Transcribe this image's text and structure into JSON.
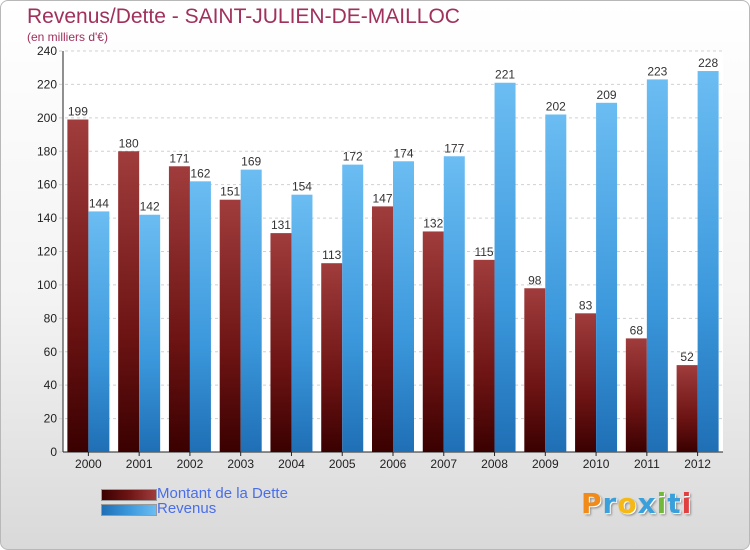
{
  "title": "Revenus/Dette - SAINT-JULIEN-DE-MAILLOC",
  "subtitle": "(en milliers d'€)",
  "brand": {
    "text": "Proxiti",
    "letter_colors": [
      "#f28a1a",
      "#3aa0dc",
      "#f5b815",
      "#3aa0dc",
      "#72b83a",
      "#3aa0dc",
      "#e04040"
    ]
  },
  "chart_data": {
    "type": "bar",
    "categories": [
      "2000",
      "2001",
      "2002",
      "2003",
      "2004",
      "2005",
      "2006",
      "2007",
      "2008",
      "2009",
      "2010",
      "2011",
      "2012"
    ],
    "series": [
      {
        "name": "Montant de la Dette",
        "color": "#7a1a1a",
        "values": [
          199,
          180,
          171,
          151,
          131,
          113,
          147,
          132,
          115,
          98,
          83,
          68,
          52
        ]
      },
      {
        "name": "Revenus",
        "color": "#3c98dc",
        "values": [
          144,
          142,
          162,
          169,
          154,
          172,
          174,
          177,
          221,
          202,
          209,
          223,
          228
        ]
      }
    ],
    "ylim": [
      0,
      240
    ],
    "yticks": [
      0,
      20,
      40,
      60,
      80,
      100,
      120,
      140,
      160,
      180,
      200,
      220,
      240
    ],
    "grid": true,
    "legend_position": "bottom-left"
  }
}
